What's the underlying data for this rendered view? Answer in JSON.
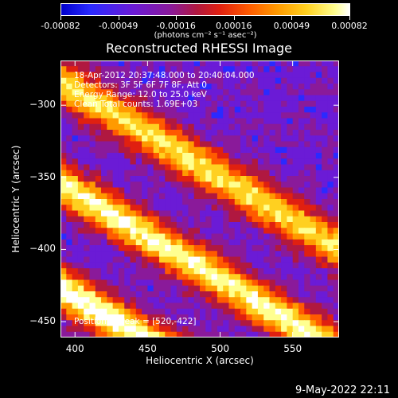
{
  "colorbar": {
    "tick_labels": [
      "-0.00082",
      "-0.00049",
      "-0.00016",
      "0.00016",
      "0.00049",
      "0.00082"
    ],
    "unit": "(photons cm⁻² s⁻¹ asec⁻²)",
    "colors": [
      "#0000cc",
      "#2a2aff",
      "#6b1bd6",
      "#8a1a9a",
      "#b01840",
      "#e02010",
      "#ff5a00",
      "#ff9a00",
      "#ffd020",
      "#ffff90",
      "#ffffff"
    ]
  },
  "annotations": {
    "time": "18-Apr-2012 20:37:48.000 to 20:40:04.000",
    "detectors": "Detectors: 3F 5F 6F 7F 8F, Att 0",
    "energy": "Energy Range: 12.0 to 25.0 keV",
    "clean": "Clean     Total counts: 1.69E+03",
    "peak": "Position of Peak = [520,-422]"
  },
  "footer": "9-May-2022 22:11",
  "chart_data": {
    "type": "heatmap",
    "title": "Reconstructed RHESSI Image",
    "xlabel": "Heliocentric X (arcsec)",
    "ylabel": "Heliocentric Y (arcsec)",
    "xlim": [
      390,
      582
    ],
    "ylim": [
      -461,
      -269
    ],
    "xticks": [
      400,
      450,
      500,
      550
    ],
    "yticks": [
      -300,
      -350,
      -400,
      -450
    ],
    "colorbar_range": [
      -0.00082,
      0.00082
    ],
    "peak_position": [
      520,
      -422
    ],
    "bands": [
      {
        "slope": -0.6,
        "intercept_y": -284,
        "amplitude": 0.8
      },
      {
        "slope": -0.6,
        "intercept_y": -355,
        "amplitude": 0.9
      },
      {
        "slope": -0.6,
        "intercept_y": -427,
        "amplitude": 1.0
      }
    ]
  }
}
